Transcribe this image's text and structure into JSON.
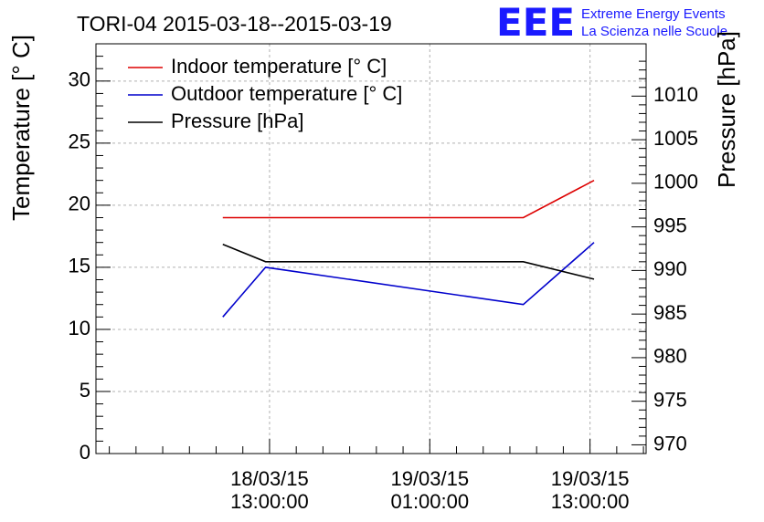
{
  "chart_data": {
    "type": "line",
    "title": "TORI-04 2015-03-18--2015-03-19",
    "logo": {
      "mark": "EEE",
      "line1": "Extreme Energy Events",
      "line2": "La Scienza nelle Scuole"
    },
    "ylabel_left": "Temperature [° C]",
    "ylabel_right": "Pressure [hPa]",
    "ylim_left": [
      0,
      33
    ],
    "ylim_right": [
      969,
      1016
    ],
    "y_left_ticks": [
      "0",
      "5",
      "10",
      "15",
      "20",
      "25",
      "30"
    ],
    "y_right_ticks": [
      "970",
      "975",
      "980",
      "985",
      "990",
      "995",
      "1000",
      "1005",
      "1010"
    ],
    "x_ticks": [
      {
        "hours": 13,
        "line1": "18/03/15",
        "line2": "13:00:00"
      },
      {
        "hours": 25,
        "line1": "19/03/15",
        "line2": "01:00:00"
      },
      {
        "hours": 37,
        "line1": "19/03/15",
        "line2": "13:00:00"
      }
    ],
    "grid": true,
    "legend_position": "top-left",
    "series": [
      {
        "name": "Indoor temperature [° C]",
        "color": "#dd0000",
        "axis": "left",
        "points": [
          {
            "hours": 9.5,
            "value": 19
          },
          {
            "hours": 32.0,
            "value": 19
          },
          {
            "hours": 37.3,
            "value": 22
          }
        ]
      },
      {
        "name": "Outdoor temperature [° C]",
        "color": "#0000cc",
        "axis": "left",
        "points": [
          {
            "hours": 9.5,
            "value": 11
          },
          {
            "hours": 12.7,
            "value": 15
          },
          {
            "hours": 32.0,
            "value": 12
          },
          {
            "hours": 37.3,
            "value": 17
          }
        ]
      },
      {
        "name": "Pressure [hPa]",
        "color": "#000000",
        "axis": "right",
        "points": [
          {
            "hours": 9.5,
            "value": 993
          },
          {
            "hours": 12.7,
            "value": 991
          },
          {
            "hours": 32.0,
            "value": 991
          },
          {
            "hours": 37.3,
            "value": 989
          }
        ]
      }
    ]
  }
}
